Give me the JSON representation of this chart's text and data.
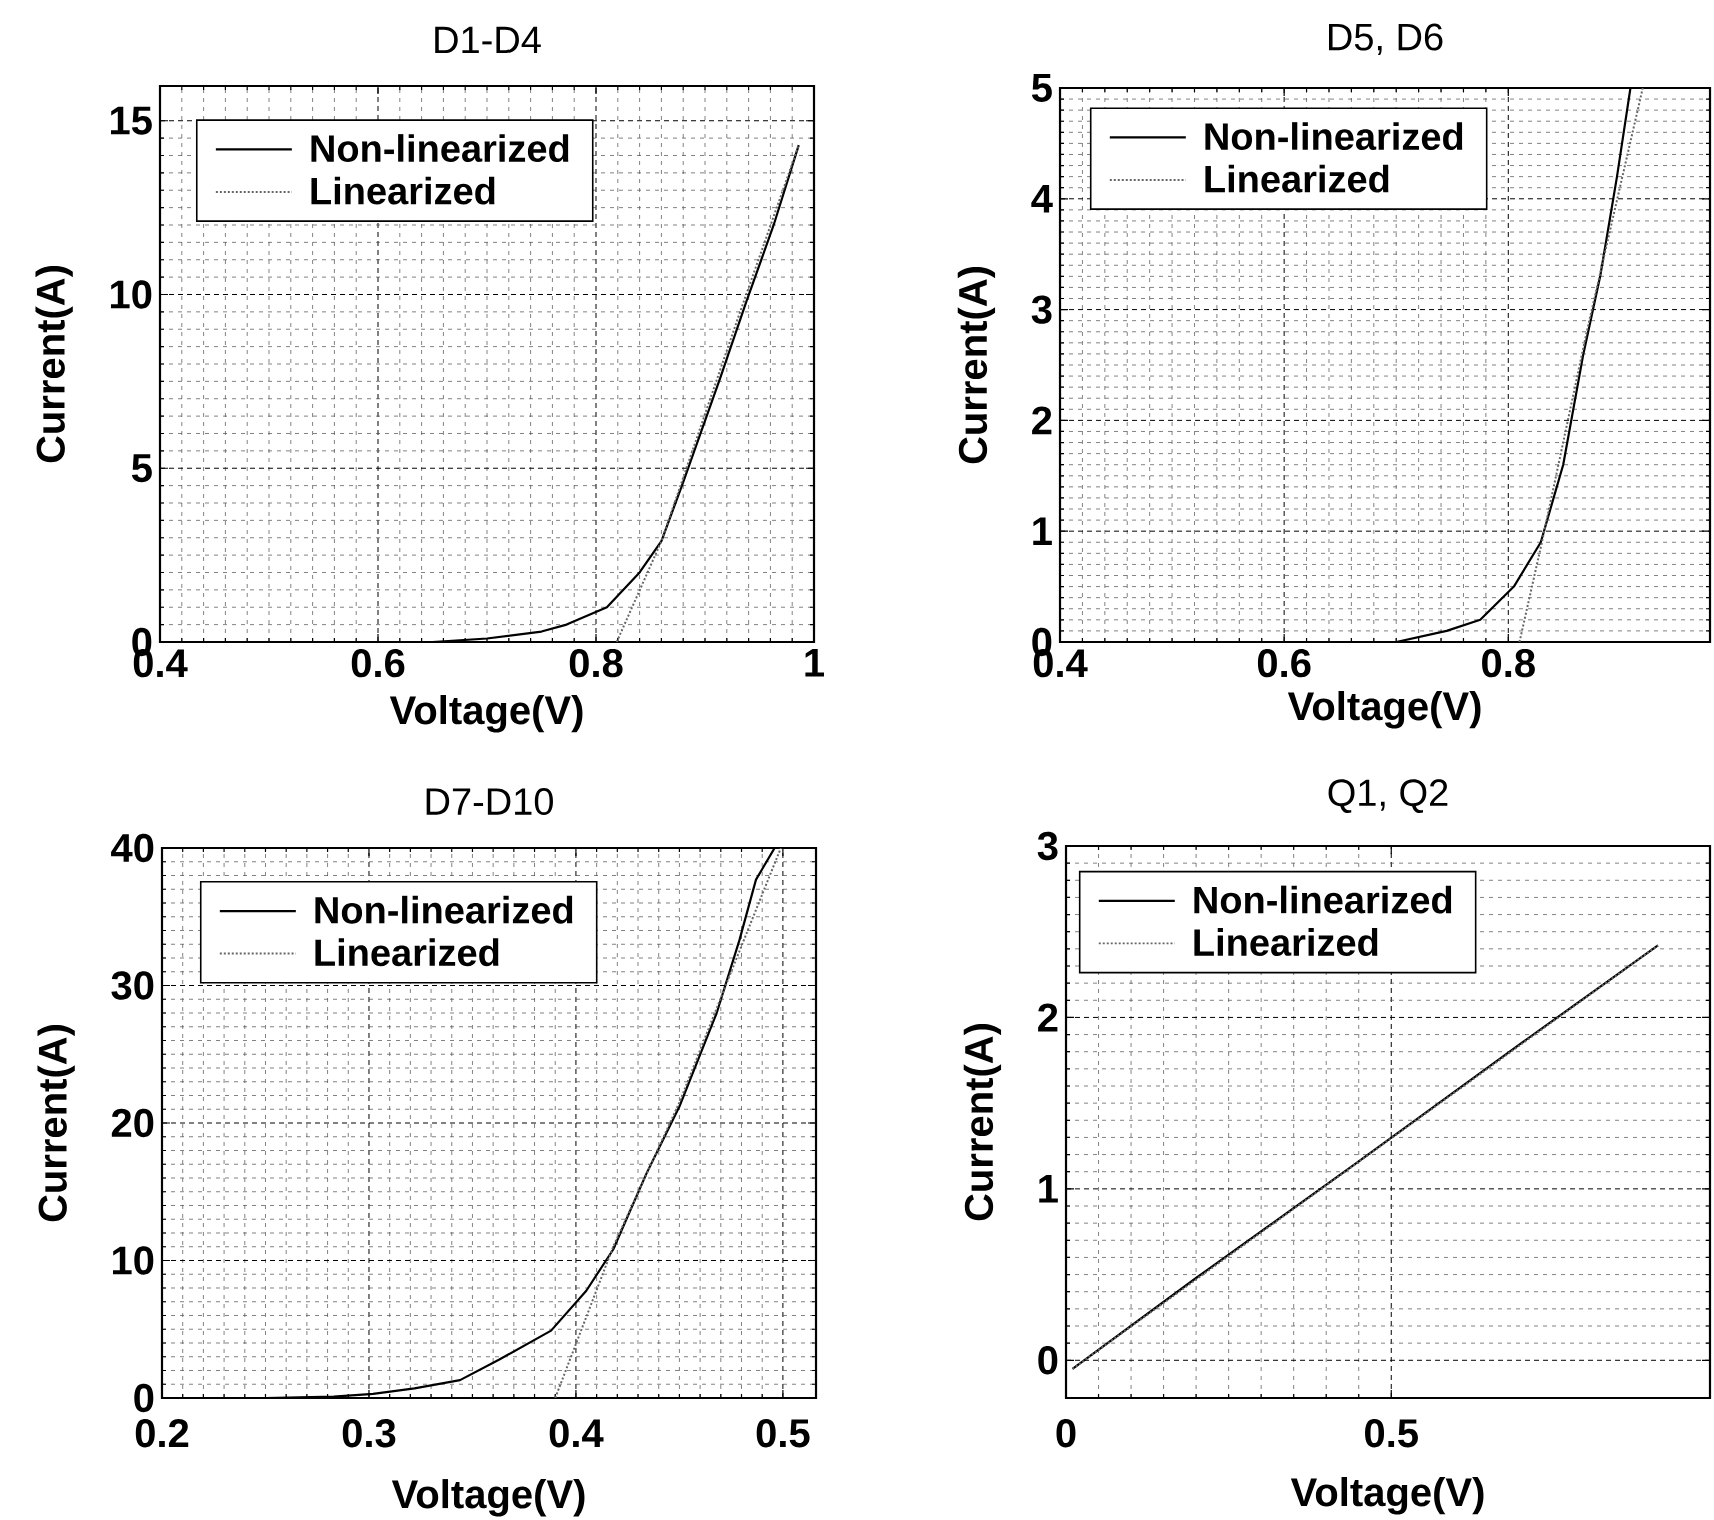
{
  "chart_data": [
    {
      "type": "line",
      "title": "D1-D4",
      "xlabel": "Voltage(V)",
      "ylabel": "Current(A)",
      "xlim": [
        0.4,
        1
      ],
      "ylim": [
        0,
        16
      ],
      "xticks": [
        0.4,
        0.6,
        0.8,
        1
      ],
      "yticks": [
        0,
        5,
        10,
        15
      ],
      "grid": true,
      "legend": "top left",
      "series": [
        {
          "name": "Non-linearized",
          "color": "#000000",
          "line_style": "solid",
          "x": [
            0.4,
            0.5,
            0.6,
            0.65,
            0.7,
            0.75,
            0.773,
            0.81,
            0.84,
            0.86,
            0.88,
            0.914,
            0.938,
            0.963,
            0.986
          ],
          "values": [
            0,
            0,
            0,
            0,
            0.1,
            0.3,
            0.5,
            1.0,
            2.0,
            2.9,
            4.6,
            7.6,
            9.8,
            12.0,
            14.3
          ]
        },
        {
          "name": "Linearized",
          "color": "#666666",
          "line_style": "dotted",
          "x": [
            0.819,
            0.86,
            0.93,
            0.986
          ],
          "values": [
            0,
            2.9,
            9.3,
            14.3
          ]
        }
      ]
    },
    {
      "type": "line",
      "title": "D5, D6",
      "xlabel": "Voltage(V)",
      "ylabel": "Current(A)",
      "xlim": [
        0.4,
        0.98
      ],
      "ylim": [
        0,
        5
      ],
      "xticks": [
        0.4,
        0.6,
        0.8
      ],
      "yticks": [
        0,
        1,
        2,
        3,
        4,
        5
      ],
      "grid": true,
      "legend": "top left",
      "series": [
        {
          "name": "Non-linearized",
          "color": "#000000",
          "line_style": "solid",
          "x": [
            0.4,
            0.6,
            0.7,
            0.745,
            0.775,
            0.805,
            0.829,
            0.849,
            0.867,
            0.882,
            0.897,
            0.909
          ],
          "values": [
            0,
            0,
            0,
            0.1,
            0.2,
            0.5,
            0.9,
            1.6,
            2.6,
            3.3,
            4.2,
            5.0
          ]
        },
        {
          "name": "Linearized",
          "color": "#666666",
          "line_style": "dotted",
          "x": [
            0.81,
            0.83,
            0.87,
            0.92
          ],
          "values": [
            0,
            0.9,
            2.8,
            5.0
          ]
        }
      ]
    },
    {
      "type": "line",
      "title": "D7-D10",
      "xlabel": "Voltage(V)",
      "ylabel": "Current(A)",
      "xlim": [
        0.2,
        0.516
      ],
      "ylim": [
        0,
        40
      ],
      "xticks": [
        0.2,
        0.3,
        0.4,
        0.5
      ],
      "yticks": [
        0,
        10,
        20,
        30,
        40
      ],
      "grid": true,
      "legend": "top left",
      "series": [
        {
          "name": "Non-linearized",
          "color": "#000000",
          "line_style": "solid",
          "x": [
            0.2,
            0.25,
            0.283,
            0.302,
            0.322,
            0.344,
            0.363,
            0.388,
            0.405,
            0.418,
            0.434,
            0.45,
            0.468,
            0.479,
            0.487,
            0.496
          ],
          "values": [
            0,
            0,
            0.1,
            0.3,
            0.7,
            1.3,
            2.8,
            4.9,
            7.8,
            10.8,
            16.3,
            21.2,
            28.0,
            33.3,
            37.7,
            40
          ]
        },
        {
          "name": "Linearized",
          "color": "#666666",
          "line_style": "dotted",
          "x": [
            0.39,
            0.418,
            0.45,
            0.475,
            0.499
          ],
          "values": [
            0,
            11,
            21.5,
            31,
            40
          ]
        }
      ]
    },
    {
      "type": "line",
      "title": "Q1, Q2",
      "xlabel": "Voltage(V)",
      "ylabel": "Current(A)",
      "xlim": [
        0,
        0.99
      ],
      "ylim": [
        -0.22,
        3
      ],
      "xticks": [
        0,
        0.5
      ],
      "yticks": [
        0,
        1,
        2,
        3
      ],
      "grid": true,
      "legend": "top left",
      "series": [
        {
          "name": "Non-linearized",
          "color": "#000000",
          "line_style": "solid",
          "x": [
            0.01,
            0.2,
            0.45,
            0.7,
            0.91
          ],
          "values": [
            -0.05,
            0.48,
            1.16,
            1.85,
            2.42
          ]
        },
        {
          "name": "Linearized",
          "color": "#666666",
          "line_style": "dotted",
          "x": [
            0.01,
            0.91
          ],
          "values": [
            -0.05,
            2.42
          ]
        }
      ]
    }
  ]
}
